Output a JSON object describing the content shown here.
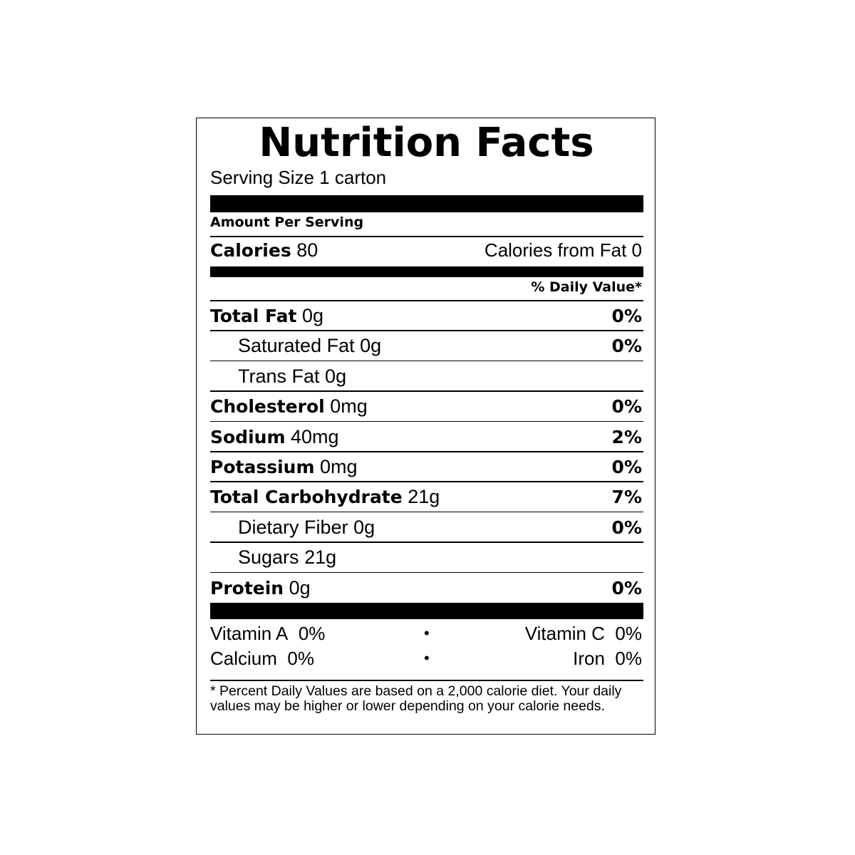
{
  "title": "Nutrition Facts",
  "serving_size": "Serving Size 1 carton",
  "amount_per_serving": "Amount Per Serving",
  "calories": {
    "label": "Calories",
    "value": "80",
    "from_fat": "Calories from Fat 0"
  },
  "daily_value_header": "% Daily Value*",
  "nutrients": [
    {
      "name": "Total Fat",
      "amount": "0g",
      "dv": "0%",
      "children": [
        {
          "name": "Saturated Fat",
          "amount": "0g",
          "dv": "0%"
        },
        {
          "name": "Trans Fat",
          "amount": "0g"
        }
      ]
    },
    {
      "name": "Cholesterol",
      "amount": "0mg",
      "dv": "0%"
    },
    {
      "name": "Sodium",
      "amount": "40mg",
      "dv": "2%"
    },
    {
      "name": "Potassium",
      "amount": "0mg",
      "dv": "0%"
    },
    {
      "name": "Total Carbohydrate",
      "amount": "21g",
      "dv": "7%",
      "children": [
        {
          "name": "Dietary Fiber",
          "amount": "0g",
          "dv": "0%"
        },
        {
          "name": "Sugars",
          "amount": "21g"
        }
      ]
    },
    {
      "name": "Protein",
      "amount": "0g",
      "dv": "0%"
    }
  ],
  "vitamins": [
    [
      {
        "name": "Vitamin A",
        "value": "0%"
      },
      {
        "name": "Vitamin C",
        "value": "0%"
      }
    ],
    [
      {
        "name": "Calcium",
        "value": "0%"
      },
      {
        "name": "Iron",
        "value": "0%"
      }
    ]
  ],
  "footnote": "* Percent Daily Values are based on a 2,000 calorie diet. Your daily values may be higher or lower depending on your calorie needs."
}
